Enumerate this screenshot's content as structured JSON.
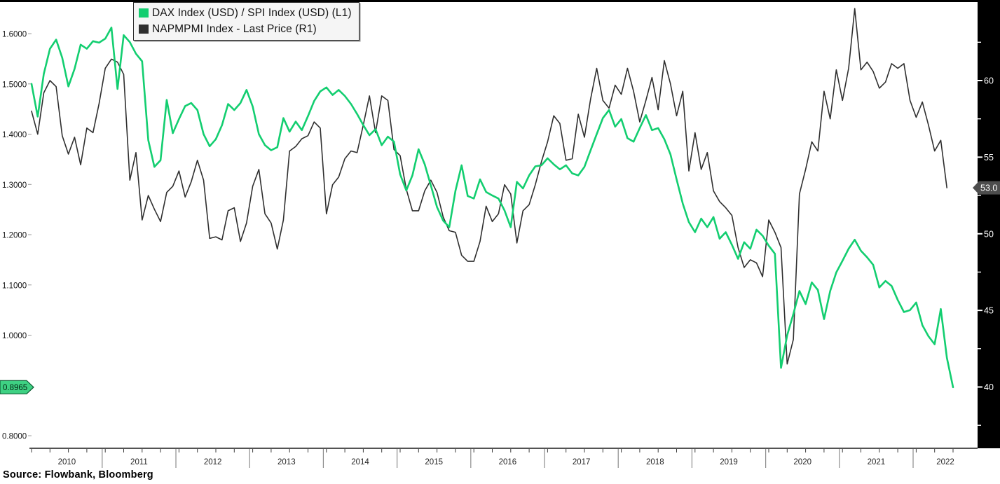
{
  "legend": {
    "series": [
      {
        "label": "DAX Index (USD) / SPI Index (USD) (L1)",
        "color": "#13ce70"
      },
      {
        "label": "NAPMPMI Index - Last Price (R1)",
        "color": "#2f2f2f"
      }
    ]
  },
  "source_note": "Source: Flowbank, Bloomberg",
  "left_axis": {
    "ticks": [
      {
        "v": 1.6,
        "label": "1.6000"
      },
      {
        "v": 1.5,
        "label": "1.5000"
      },
      {
        "v": 1.4,
        "label": "1.4000"
      },
      {
        "v": 1.3,
        "label": "1.3000"
      },
      {
        "v": 1.2,
        "label": "1.2000"
      },
      {
        "v": 1.1,
        "label": "1.1000"
      },
      {
        "v": 1.0,
        "label": "1.0000"
      },
      {
        "v": 0.9,
        "label": ""
      },
      {
        "v": 0.8,
        "label": "0.8000"
      }
    ],
    "badge": {
      "value": 0.8965,
      "label": "0.8965",
      "fill": "#3ed183",
      "stroke": "#0b5c33",
      "text_color": "#00220f"
    }
  },
  "right_axis": {
    "major_ticks": [
      {
        "v": 60,
        "label": "60"
      },
      {
        "v": 55,
        "label": "55"
      },
      {
        "v": 50,
        "label": "50"
      },
      {
        "v": 45,
        "label": "45"
      },
      {
        "v": 40,
        "label": "40"
      }
    ],
    "minor_ticks": [
      62.5,
      57.5,
      52.5,
      47.5,
      42.5,
      37.5
    ],
    "strip_color": "#000000",
    "text_color": "#ffffff",
    "badge": {
      "value": 53.0,
      "label": "53.0",
      "fill": "#4d4d4d",
      "text_color": "#ffffff"
    }
  },
  "x_axis": {
    "years": [
      "2010",
      "2011",
      "2012",
      "2013",
      "2014",
      "2015",
      "2016",
      "2017",
      "2018",
      "2019",
      "2020",
      "2021",
      "2022"
    ]
  },
  "chart_data": {
    "type": "line",
    "x_start": "2010-01",
    "x_end": "2022-07",
    "x_frequency": "monthly",
    "left_range": [
      0.775,
      1.653
    ],
    "right_range": [
      36.0,
      64.8
    ],
    "grid": false,
    "legend_position": "top-left",
    "series": [
      {
        "name": "DAX Index (USD) / SPI Index (USD)",
        "axis": "L1",
        "color": "#13ce70",
        "last_value": 0.8965,
        "values": [
          1.5,
          1.435,
          1.52,
          1.57,
          1.588,
          1.552,
          1.495,
          1.53,
          1.578,
          1.57,
          1.585,
          1.582,
          1.59,
          1.612,
          1.49,
          1.597,
          1.583,
          1.56,
          1.545,
          1.388,
          1.335,
          1.348,
          1.468,
          1.402,
          1.43,
          1.456,
          1.462,
          1.448,
          1.4,
          1.376,
          1.39,
          1.418,
          1.46,
          1.448,
          1.462,
          1.488,
          1.455,
          1.4,
          1.378,
          1.368,
          1.374,
          1.432,
          1.405,
          1.425,
          1.408,
          1.436,
          1.466,
          1.485,
          1.493,
          1.478,
          1.488,
          1.476,
          1.46,
          1.44,
          1.418,
          1.398,
          1.41,
          1.378,
          1.395,
          1.385,
          1.32,
          1.288,
          1.318,
          1.37,
          1.34,
          1.298,
          1.255,
          1.228,
          1.215,
          1.287,
          1.338,
          1.277,
          1.272,
          1.31,
          1.285,
          1.278,
          1.272,
          1.248,
          1.215,
          1.305,
          1.292,
          1.318,
          1.336,
          1.338,
          1.352,
          1.34,
          1.33,
          1.338,
          1.322,
          1.318,
          1.335,
          1.368,
          1.4,
          1.432,
          1.448,
          1.415,
          1.43,
          1.392,
          1.385,
          1.412,
          1.438,
          1.408,
          1.412,
          1.39,
          1.36,
          1.31,
          1.262,
          1.225,
          1.205,
          1.232,
          1.215,
          1.235,
          1.192,
          1.205,
          1.18,
          1.152,
          1.185,
          1.172,
          1.21,
          1.198,
          1.178,
          1.162,
          0.935,
          1.0,
          1.042,
          1.088,
          1.062,
          1.105,
          1.09,
          1.032,
          1.088,
          1.125,
          1.148,
          1.172,
          1.19,
          1.168,
          1.155,
          1.14,
          1.095,
          1.108,
          1.098,
          1.07,
          1.046,
          1.05,
          1.065,
          1.02,
          0.998,
          0.982,
          1.052,
          0.955,
          0.8965
        ]
      },
      {
        "name": "NAPMPMI Index - Last Price",
        "axis": "R1",
        "color": "#2f2f2f",
        "last_value": 53.0,
        "values": [
          58.0,
          56.5,
          59.2,
          60.0,
          59.6,
          56.4,
          55.2,
          56.3,
          54.5,
          56.9,
          56.6,
          58.5,
          60.8,
          61.4,
          61.2,
          60.4,
          53.5,
          55.3,
          50.9,
          52.5,
          51.6,
          50.8,
          52.7,
          53.1,
          54.1,
          52.4,
          53.4,
          54.8,
          53.5,
          49.7,
          49.8,
          49.6,
          51.5,
          51.7,
          49.5,
          50.7,
          53.1,
          54.2,
          51.3,
          50.7,
          49.0,
          50.9,
          55.4,
          55.7,
          56.2,
          56.4,
          57.3,
          56.9,
          51.3,
          53.2,
          53.7,
          54.9,
          55.4,
          55.3,
          57.1,
          59.0,
          56.6,
          59.0,
          58.7,
          55.5,
          55.1,
          52.9,
          51.5,
          51.5,
          52.8,
          53.5,
          52.7,
          51.1,
          50.2,
          50.1,
          48.6,
          48.2,
          48.2,
          49.5,
          51.8,
          50.8,
          51.3,
          53.2,
          52.6,
          49.4,
          51.5,
          51.9,
          53.2,
          54.7,
          56.0,
          57.7,
          57.2,
          54.8,
          54.9,
          57.8,
          56.3,
          58.8,
          60.8,
          58.7,
          58.2,
          59.7,
          59.1,
          60.8,
          59.3,
          57.3,
          58.7,
          60.2,
          58.1,
          61.3,
          59.8,
          57.7,
          59.3,
          54.1,
          56.6,
          54.2,
          55.3,
          52.8,
          52.1,
          51.7,
          51.2,
          49.1,
          47.8,
          48.3,
          48.1,
          47.2,
          50.9,
          50.1,
          49.1,
          41.5,
          43.1,
          52.6,
          54.2,
          56.0,
          55.4,
          59.3,
          57.5,
          60.7,
          58.7,
          60.8,
          64.7,
          60.7,
          61.2,
          60.6,
          59.5,
          59.9,
          61.1,
          60.8,
          61.1,
          58.7,
          57.6,
          58.6,
          57.1,
          55.4,
          56.1,
          53.0
        ]
      }
    ]
  }
}
